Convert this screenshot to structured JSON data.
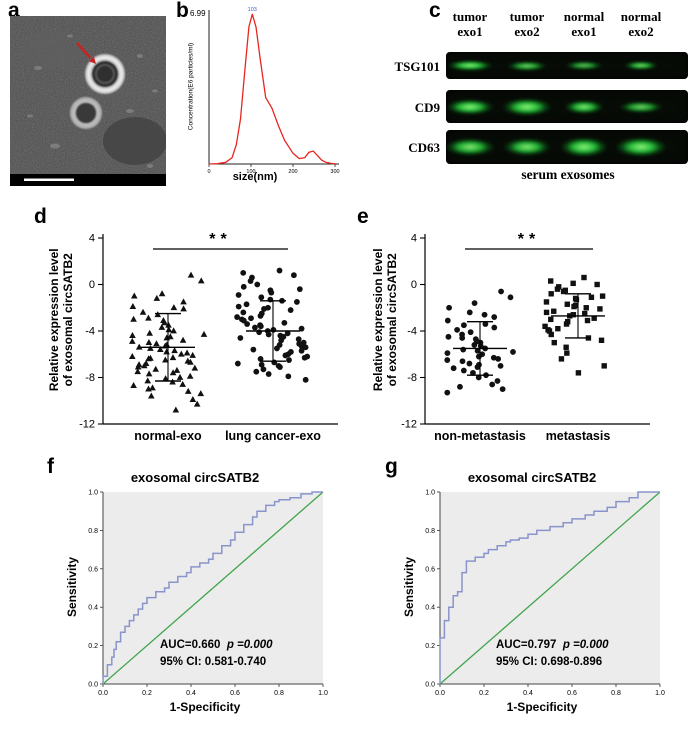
{
  "letters": {
    "a": "a",
    "b": "b",
    "c": "c",
    "d": "d",
    "e": "e",
    "f": "f",
    "g": "g"
  },
  "panel_a": {
    "arrow_color": "#c62422"
  },
  "blot": {
    "columns": [
      "tumor exo1",
      "tumor exo2",
      "normal exo1",
      "normal exo2"
    ],
    "rows": [
      {
        "label": "TSG101",
        "bands": [
          {
            "w": 46,
            "h": 11,
            "o": 1
          },
          {
            "w": 40,
            "h": 10,
            "o": 0.85
          },
          {
            "w": 38,
            "h": 9,
            "o": 0.78
          },
          {
            "w": 34,
            "h": 9,
            "o": 0.9
          }
        ]
      },
      {
        "label": "CD9",
        "bands": [
          {
            "w": 48,
            "h": 16,
            "o": 1
          },
          {
            "w": 50,
            "h": 18,
            "o": 1
          },
          {
            "w": 40,
            "h": 14,
            "o": 0.95
          },
          {
            "w": 44,
            "h": 12,
            "o": 0.85
          }
        ]
      },
      {
        "label": "CD63",
        "bands": [
          {
            "w": 50,
            "h": 18,
            "o": 0.95
          },
          {
            "w": 48,
            "h": 18,
            "o": 0.95
          },
          {
            "w": 48,
            "h": 20,
            "o": 1
          },
          {
            "w": 52,
            "h": 20,
            "o": 1
          }
        ]
      }
    ],
    "caption": "serum exosomes"
  },
  "chart_data": [
    {
      "id": "panel-b",
      "type": "line",
      "ylabel": "Concentration(E6 particles/ml)",
      "xlabel": "size(nm)",
      "y_top_label": "6.99",
      "xlim": [
        0,
        300
      ],
      "ylim": [
        0,
        7
      ],
      "x_ticks": [
        0,
        100,
        200,
        300
      ],
      "x": [
        0,
        20,
        40,
        55,
        65,
        75,
        85,
        95,
        103,
        112,
        122,
        135,
        150,
        165,
        180,
        200,
        215,
        228,
        238,
        248,
        258,
        268,
        278,
        290,
        300
      ],
      "y": [
        0,
        0.02,
        0.08,
        0.3,
        0.9,
        2.1,
        4.3,
        6.4,
        6.99,
        6.4,
        4.9,
        3.1,
        2.6,
        1.8,
        1.1,
        0.5,
        0.25,
        0.3,
        0.55,
        0.6,
        0.4,
        0.18,
        0.08,
        0.03,
        0.01
      ],
      "line_color": "#e8251f",
      "peak_labels": [
        {
          "x": 103,
          "y": 6.99,
          "text": "103"
        }
      ]
    },
    {
      "id": "panel-d",
      "type": "scatter",
      "ylabel_line1": "Relative expression level",
      "ylabel_line2": "of exosomal circSATB2",
      "ylim": [
        -12,
        4
      ],
      "y_ticks": [
        4,
        0,
        -4,
        -8,
        -12
      ],
      "significance": "**",
      "groups": [
        {
          "name": "normal-exo",
          "marker": "triangle",
          "mean": -5.4,
          "sd": 2.9,
          "values": [
            0.8,
            0.3,
            -0.8,
            -1.0,
            -1.2,
            -1.5,
            -1.9,
            -2.0,
            -2.1,
            -2.4,
            -2.6,
            -2.9,
            -3.0,
            -3.1,
            -3.3,
            -3.5,
            -3.7,
            -3.9,
            -4.0,
            -4.2,
            -4.3,
            -4.4,
            -4.5,
            -4.6,
            -4.8,
            -4.9,
            -5.0,
            -5.1,
            -5.2,
            -5.3,
            -5.4,
            -5.5,
            -5.6,
            -5.7,
            -5.8,
            -5.9,
            -6.0,
            -6.1,
            -6.2,
            -6.3,
            -6.35,
            -6.4,
            -6.5,
            -6.6,
            -6.7,
            -6.8,
            -6.9,
            -7.0,
            -7.1,
            -7.2,
            -7.3,
            -7.4,
            -7.5,
            -7.6,
            -7.7,
            -7.9,
            -8.0,
            -8.1,
            -8.3,
            -8.4,
            -8.6,
            -8.7,
            -8.9,
            -9.0,
            -9.2,
            -9.4,
            -9.6,
            -9.9,
            -10.3,
            -10.8
          ]
        },
        {
          "name": "lung cancer-exo",
          "marker": "circle",
          "mean": -4.0,
          "sd": 2.6,
          "values": [
            1.2,
            1.0,
            0.8,
            0.6,
            0.3,
            0.0,
            -0.2,
            -0.4,
            -0.5,
            -0.7,
            -0.9,
            -1.1,
            -1.3,
            -1.4,
            -1.5,
            -1.7,
            -1.9,
            -2.0,
            -2.1,
            -2.2,
            -2.4,
            -2.5,
            -2.7,
            -2.8,
            -2.9,
            -3.0,
            -3.1,
            -3.3,
            -3.4,
            -3.5,
            -3.6,
            -3.7,
            -3.8,
            -3.9,
            -4.0,
            -4.1,
            -4.2,
            -4.3,
            -4.4,
            -4.5,
            -4.6,
            -4.7,
            -4.8,
            -5.0,
            -5.1,
            -5.2,
            -5.3,
            -5.4,
            -5.5,
            -5.6,
            -5.7,
            -5.8,
            -6.0,
            -6.1,
            -6.2,
            -6.3,
            -6.4,
            -6.5,
            -6.7,
            -6.8,
            -6.9,
            -7.0,
            -7.1,
            -7.3,
            -7.5,
            -7.7,
            -7.9,
            -8.2
          ]
        }
      ]
    },
    {
      "id": "panel-e",
      "type": "scatter",
      "ylabel_line1": "Relative expression level",
      "ylabel_line2": "of exosomal circSATB2",
      "ylim": [
        -12,
        4
      ],
      "y_ticks": [
        4,
        0,
        -4,
        -8,
        -12
      ],
      "significance": "**",
      "groups": [
        {
          "name": "non-metastasis",
          "marker": "circle",
          "mean": -5.5,
          "sd": 2.3,
          "values": [
            -0.6,
            -1.1,
            -1.6,
            -2.0,
            -2.4,
            -2.8,
            -3.1,
            -3.4,
            -3.7,
            -3.9,
            -4.1,
            -4.3,
            -4.5,
            -4.7,
            -4.9,
            -5.0,
            -5.2,
            -5.3,
            -5.5,
            -5.6,
            -5.8,
            -5.9,
            -6.0,
            -6.2,
            -6.3,
            -6.5,
            -6.6,
            -6.8,
            -6.9,
            -7.1,
            -7.2,
            -7.4,
            -7.6,
            -7.8,
            -8.0,
            -8.3,
            -8.6,
            -9.0,
            -9.3,
            -2.6,
            -3.5,
            -4.6,
            -5.7,
            -6.4,
            -7.0,
            -8.8
          ]
        },
        {
          "name": "metastasis",
          "marker": "square",
          "mean": -2.7,
          "sd": 1.9,
          "values": [
            0.6,
            0.3,
            0.0,
            -0.2,
            -0.4,
            -0.6,
            -0.8,
            -1.0,
            -1.2,
            -1.3,
            -1.5,
            -1.7,
            -1.8,
            -2.0,
            -2.1,
            -2.3,
            -2.4,
            -2.6,
            -2.7,
            -2.9,
            -3.0,
            -3.2,
            -3.4,
            -3.6,
            -3.8,
            -4.0,
            -4.3,
            -4.6,
            -5.0,
            -5.4,
            -5.9,
            -6.4,
            -7.0,
            -7.6,
            0.1,
            -0.5,
            -1.1,
            -1.9,
            -2.5,
            -3.1,
            -3.9,
            -4.8
          ]
        }
      ]
    },
    {
      "id": "panel-f",
      "type": "line",
      "title": "exosomal circSATB2",
      "xlabel": "1-Specificity",
      "ylabel": "Sensitivity",
      "ticks": [
        0,
        0.2,
        0.4,
        0.6,
        0.8,
        1
      ],
      "auc_label": "AUC=0.660",
      "p_label": "p =0.000",
      "ci_label": "95% CI:  0.581-0.740",
      "curve_color": "#8a94cc",
      "diagonal_color": "#3fa54a",
      "roc_points": [
        [
          0,
          0
        ],
        [
          0.02,
          0.04
        ],
        [
          0.02,
          0.08
        ],
        [
          0.04,
          0.1
        ],
        [
          0.05,
          0.14
        ],
        [
          0.06,
          0.18
        ],
        [
          0.08,
          0.22
        ],
        [
          0.1,
          0.27
        ],
        [
          0.12,
          0.3
        ],
        [
          0.14,
          0.33
        ],
        [
          0.16,
          0.36
        ],
        [
          0.18,
          0.39
        ],
        [
          0.2,
          0.42
        ],
        [
          0.24,
          0.45
        ],
        [
          0.28,
          0.48
        ],
        [
          0.3,
          0.5
        ],
        [
          0.34,
          0.53
        ],
        [
          0.38,
          0.56
        ],
        [
          0.4,
          0.58
        ],
        [
          0.44,
          0.61
        ],
        [
          0.48,
          0.63
        ],
        [
          0.5,
          0.65
        ],
        [
          0.54,
          0.68
        ],
        [
          0.58,
          0.72
        ],
        [
          0.6,
          0.75
        ],
        [
          0.64,
          0.79
        ],
        [
          0.68,
          0.83
        ],
        [
          0.7,
          0.87
        ],
        [
          0.74,
          0.9
        ],
        [
          0.78,
          0.93
        ],
        [
          0.8,
          0.95
        ],
        [
          0.85,
          0.96
        ],
        [
          0.9,
          0.97
        ],
        [
          0.95,
          0.99
        ],
        [
          1,
          1
        ]
      ]
    },
    {
      "id": "panel-g",
      "type": "line",
      "title": "exosomal circSATB2",
      "xlabel": "1-Specificity",
      "ylabel": "Sensitivity",
      "ticks": [
        0,
        0.2,
        0.4,
        0.6,
        0.8,
        1
      ],
      "auc_label": "AUC=0.797",
      "p_label": "p =0.000",
      "ci_label": "95% CI:  0.698-0.896",
      "curve_color": "#8a94cc",
      "diagonal_color": "#3fa54a",
      "roc_points": [
        [
          0,
          0
        ],
        [
          0,
          0.21
        ],
        [
          0.02,
          0.24
        ],
        [
          0.02,
          0.3
        ],
        [
          0.04,
          0.33
        ],
        [
          0.04,
          0.38
        ],
        [
          0.06,
          0.4
        ],
        [
          0.06,
          0.44
        ],
        [
          0.08,
          0.46
        ],
        [
          0.1,
          0.48
        ],
        [
          0.1,
          0.55
        ],
        [
          0.12,
          0.58
        ],
        [
          0.12,
          0.62
        ],
        [
          0.16,
          0.64
        ],
        [
          0.2,
          0.66
        ],
        [
          0.22,
          0.68
        ],
        [
          0.26,
          0.7
        ],
        [
          0.3,
          0.72
        ],
        [
          0.32,
          0.74
        ],
        [
          0.36,
          0.75
        ],
        [
          0.4,
          0.76
        ],
        [
          0.44,
          0.78
        ],
        [
          0.5,
          0.8
        ],
        [
          0.56,
          0.82
        ],
        [
          0.6,
          0.84
        ],
        [
          0.66,
          0.86
        ],
        [
          0.7,
          0.88
        ],
        [
          0.76,
          0.9
        ],
        [
          0.8,
          0.92
        ],
        [
          0.86,
          0.95
        ],
        [
          0.9,
          0.97
        ],
        [
          1,
          1
        ]
      ]
    }
  ]
}
